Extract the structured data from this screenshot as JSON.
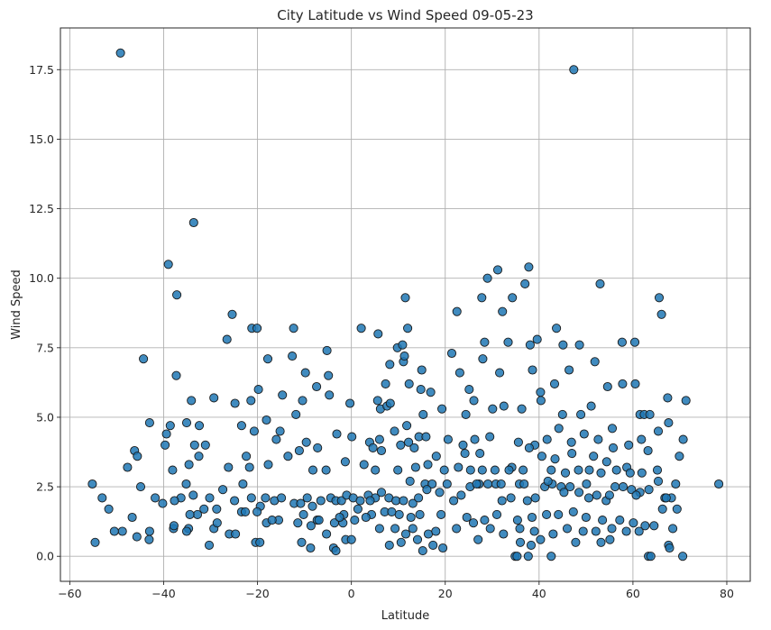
{
  "chart_data": {
    "type": "scatter",
    "title": "City Latitude vs Wind Speed 09-05-23",
    "xlabel": "Latitude",
    "ylabel": "Wind Speed",
    "xlim": [
      -62,
      85
    ],
    "ylim": [
      -0.9,
      19.0
    ],
    "xticks": [
      -60,
      -40,
      -20,
      0,
      20,
      40,
      60,
      80
    ],
    "yticks": [
      0.0,
      2.5,
      5.0,
      7.5,
      10.0,
      12.5,
      15.0,
      17.5
    ],
    "xtick_labels": [
      "−60",
      "−40",
      "−20",
      "0",
      "20",
      "40",
      "60",
      "80"
    ],
    "ytick_labels": [
      "0.0",
      "2.5",
      "5.0",
      "7.5",
      "10.0",
      "12.5",
      "15.0",
      "17.5"
    ],
    "grid": true,
    "legend": "none",
    "marker_color": "#1f77b4",
    "marker_edge_color": "#000000",
    "points": [
      [
        -49.2,
        18.1
      ],
      [
        47.4,
        17.5
      ],
      [
        -33.6,
        12.0
      ],
      [
        -39.0,
        10.5
      ],
      [
        -37.2,
        9.4
      ],
      [
        31.2,
        10.3
      ],
      [
        37.8,
        10.4
      ],
      [
        29.0,
        10.0
      ],
      [
        34.3,
        9.3
      ],
      [
        37.0,
        9.8
      ],
      [
        11.5,
        9.3
      ],
      [
        27.8,
        9.3
      ],
      [
        53.0,
        9.8
      ],
      [
        65.6,
        9.3
      ],
      [
        66.1,
        8.7
      ],
      [
        -25.4,
        8.7
      ],
      [
        -21.2,
        8.2
      ],
      [
        -20.1,
        8.2
      ],
      [
        -12.3,
        8.2
      ],
      [
        2.1,
        8.2
      ],
      [
        12.0,
        8.2
      ],
      [
        22.5,
        8.8
      ],
      [
        32.2,
        8.8
      ],
      [
        43.7,
        8.2
      ],
      [
        -26.5,
        7.8
      ],
      [
        -44.3,
        7.1
      ],
      [
        -17.8,
        7.1
      ],
      [
        -12.6,
        7.2
      ],
      [
        -5.2,
        7.4
      ],
      [
        5.7,
        8.0
      ],
      [
        9.8,
        7.5
      ],
      [
        10.9,
        7.6
      ],
      [
        11.1,
        7.0
      ],
      [
        21.4,
        7.3
      ],
      [
        28.4,
        7.7
      ],
      [
        33.4,
        7.7
      ],
      [
        38.1,
        7.6
      ],
      [
        39.6,
        7.8
      ],
      [
        45.1,
        7.6
      ],
      [
        48.6,
        7.6
      ],
      [
        57.7,
        7.7
      ],
      [
        60.4,
        7.7
      ],
      [
        8.2,
        6.9
      ],
      [
        11.3,
        7.2
      ],
      [
        15.0,
        6.7
      ],
      [
        23.1,
        6.6
      ],
      [
        28.0,
        7.1
      ],
      [
        31.6,
        6.6
      ],
      [
        38.6,
        6.7
      ],
      [
        46.4,
        6.7
      ],
      [
        51.9,
        7.0
      ],
      [
        -37.3,
        6.5
      ],
      [
        -9.8,
        6.6
      ],
      [
        -7.4,
        6.1
      ],
      [
        -4.9,
        6.5
      ],
      [
        7.3,
        6.2
      ],
      [
        12.3,
        6.2
      ],
      [
        14.8,
        6.0
      ],
      [
        16.9,
        5.9
      ],
      [
        25.1,
        6.0
      ],
      [
        40.3,
        5.9
      ],
      [
        43.3,
        6.2
      ],
      [
        54.6,
        6.1
      ],
      [
        57.8,
        6.2
      ],
      [
        60.5,
        6.2
      ],
      [
        -19.8,
        6.0
      ],
      [
        -34.1,
        5.6
      ],
      [
        -29.3,
        5.7
      ],
      [
        -24.8,
        5.5
      ],
      [
        -21.4,
        5.6
      ],
      [
        -14.7,
        5.8
      ],
      [
        -10.4,
        5.6
      ],
      [
        -4.7,
        5.8
      ],
      [
        -0.3,
        5.5
      ],
      [
        5.6,
        5.6
      ],
      [
        6.2,
        5.3
      ],
      [
        7.6,
        5.4
      ],
      [
        8.3,
        5.5
      ],
      [
        15.3,
        5.1
      ],
      [
        19.3,
        5.3
      ],
      [
        24.4,
        5.1
      ],
      [
        26.1,
        5.6
      ],
      [
        30.1,
        5.3
      ],
      [
        32.5,
        5.4
      ],
      [
        36.3,
        5.3
      ],
      [
        40.4,
        5.6
      ],
      [
        45.0,
        5.1
      ],
      [
        48.9,
        5.1
      ],
      [
        51.1,
        5.4
      ],
      [
        55.6,
        4.6
      ],
      [
        61.5,
        5.1
      ],
      [
        62.4,
        5.1
      ],
      [
        63.6,
        5.1
      ],
      [
        67.4,
        5.7
      ],
      [
        71.3,
        5.6
      ],
      [
        -43.0,
        4.8
      ],
      [
        -39.4,
        4.4
      ],
      [
        -38.6,
        4.7
      ],
      [
        -35.1,
        4.8
      ],
      [
        -32.4,
        4.7
      ],
      [
        -23.4,
        4.7
      ],
      [
        -20.7,
        4.5
      ],
      [
        -18.1,
        4.9
      ],
      [
        -15.2,
        4.5
      ],
      [
        -11.8,
        5.1
      ],
      [
        -9.6,
        4.1
      ],
      [
        -3.1,
        4.4
      ],
      [
        0.1,
        4.3
      ],
      [
        3.9,
        4.1
      ],
      [
        6.0,
        4.2
      ],
      [
        9.2,
        4.5
      ],
      [
        10.5,
        4.0
      ],
      [
        11.8,
        4.7
      ],
      [
        14.4,
        4.3
      ],
      [
        15.9,
        4.3
      ],
      [
        20.6,
        4.2
      ],
      [
        23.8,
        4.0
      ],
      [
        26.3,
        4.2
      ],
      [
        29.5,
        4.3
      ],
      [
        35.6,
        4.1
      ],
      [
        39.1,
        4.0
      ],
      [
        41.7,
        4.2
      ],
      [
        44.2,
        4.6
      ],
      [
        46.9,
        4.1
      ],
      [
        49.6,
        4.4
      ],
      [
        52.6,
        4.2
      ],
      [
        55.8,
        3.9
      ],
      [
        59.1,
        4.0
      ],
      [
        61.8,
        4.2
      ],
      [
        65.4,
        4.5
      ],
      [
        67.6,
        4.8
      ],
      [
        70.7,
        4.2
      ],
      [
        -39.7,
        4.0
      ],
      [
        -33.4,
        4.0
      ],
      [
        -31.1,
        4.0
      ],
      [
        -16.0,
        4.2
      ],
      [
        -11.1,
        3.8
      ],
      [
        -7.2,
        3.9
      ],
      [
        4.6,
        3.9
      ],
      [
        6.4,
        3.8
      ],
      [
        12.2,
        4.1
      ],
      [
        13.4,
        3.9
      ],
      [
        18.1,
        3.6
      ],
      [
        24.2,
        3.7
      ],
      [
        27.4,
        3.7
      ],
      [
        34.2,
        3.2
      ],
      [
        37.9,
        3.9
      ],
      [
        40.6,
        3.6
      ],
      [
        43.4,
        3.5
      ],
      [
        47.0,
        3.7
      ],
      [
        51.6,
        3.6
      ],
      [
        54.4,
        3.4
      ],
      [
        58.7,
        3.2
      ],
      [
        63.2,
        3.8
      ],
      [
        69.9,
        3.6
      ],
      [
        -47.7,
        3.2
      ],
      [
        -46.2,
        3.8
      ],
      [
        -45.6,
        3.6
      ],
      [
        -38.1,
        3.1
      ],
      [
        -34.6,
        3.3
      ],
      [
        -32.5,
        3.6
      ],
      [
        -26.2,
        3.2
      ],
      [
        -22.4,
        3.6
      ],
      [
        -21.7,
        3.2
      ],
      [
        -17.7,
        3.3
      ],
      [
        -13.5,
        3.6
      ],
      [
        -8.2,
        3.1
      ],
      [
        -5.4,
        3.1
      ],
      [
        -1.3,
        3.4
      ],
      [
        2.7,
        3.3
      ],
      [
        5.1,
        3.1
      ],
      [
        9.9,
        3.1
      ],
      [
        13.7,
        3.2
      ],
      [
        16.3,
        3.3
      ],
      [
        19.8,
        3.1
      ],
      [
        22.8,
        3.2
      ],
      [
        25.4,
        3.1
      ],
      [
        27.9,
        3.1
      ],
      [
        30.6,
        3.1
      ],
      [
        33.6,
        3.1
      ],
      [
        36.6,
        3.1
      ],
      [
        42.6,
        3.1
      ],
      [
        45.6,
        3.0
      ],
      [
        48.4,
        3.1
      ],
      [
        50.7,
        3.1
      ],
      [
        53.2,
        3.0
      ],
      [
        56.5,
        3.1
      ],
      [
        59.4,
        3.0
      ],
      [
        61.9,
        3.0
      ],
      [
        65.2,
        3.1
      ],
      [
        -55.2,
        2.6
      ],
      [
        -53.1,
        2.1
      ],
      [
        -51.7,
        1.7
      ],
      [
        -44.9,
        2.5
      ],
      [
        -41.8,
        2.1
      ],
      [
        -36.3,
        2.1
      ],
      [
        -35.2,
        2.6
      ],
      [
        -33.7,
        2.2
      ],
      [
        -30.2,
        2.1
      ],
      [
        -28.7,
        1.7
      ],
      [
        -27.4,
        2.4
      ],
      [
        -24.9,
        2.0
      ],
      [
        -23.1,
        2.6
      ],
      [
        -21.3,
        2.1
      ],
      [
        -19.4,
        1.8
      ],
      [
        -18.3,
        2.1
      ],
      [
        -16.4,
        2.0
      ],
      [
        -14.9,
        2.1
      ],
      [
        -12.2,
        1.9
      ],
      [
        -10.8,
        1.9
      ],
      [
        -9.4,
        2.1
      ],
      [
        -8.3,
        1.8
      ],
      [
        -6.5,
        2.0
      ],
      [
        -4.4,
        2.1
      ],
      [
        -3.3,
        2.0
      ],
      [
        -2.1,
        2.0
      ],
      [
        -1.0,
        2.2
      ],
      [
        0.4,
        2.1
      ],
      [
        1.9,
        2.0
      ],
      [
        3.6,
        2.2
      ],
      [
        5.1,
        2.1
      ],
      [
        6.4,
        2.3
      ],
      [
        8.0,
        2.1
      ],
      [
        9.5,
        2.0
      ],
      [
        11.1,
        2.0
      ],
      [
        13.1,
        1.9
      ],
      [
        14.3,
        2.1
      ],
      [
        15.7,
        2.6
      ],
      [
        17.2,
        2.6
      ],
      [
        18.8,
        2.3
      ],
      [
        21.8,
        2.0
      ],
      [
        23.4,
        2.2
      ],
      [
        25.3,
        2.5
      ],
      [
        27.2,
        2.6
      ],
      [
        29.1,
        2.6
      ],
      [
        30.8,
        2.6
      ],
      [
        32.1,
        2.0
      ],
      [
        34.0,
        2.1
      ],
      [
        35.8,
        2.6
      ],
      [
        37.5,
        2.0
      ],
      [
        39.2,
        2.1
      ],
      [
        41.2,
        2.5
      ],
      [
        42.8,
        2.6
      ],
      [
        44.7,
        2.5
      ],
      [
        46.6,
        2.5
      ],
      [
        48.5,
        2.3
      ],
      [
        50.6,
        2.1
      ],
      [
        52.3,
        2.2
      ],
      [
        54.3,
        2.0
      ],
      [
        56.2,
        2.5
      ],
      [
        57.9,
        2.5
      ],
      [
        59.7,
        2.4
      ],
      [
        61.5,
        2.3
      ],
      [
        63.4,
        2.4
      ],
      [
        65.4,
        2.7
      ],
      [
        66.8,
        2.1
      ],
      [
        68.2,
        2.1
      ],
      [
        69.1,
        2.6
      ],
      [
        -37.7,
        2.0
      ],
      [
        -40.2,
        1.9
      ],
      [
        -31.4,
        1.7
      ],
      [
        -23.4,
        1.6
      ],
      [
        -20.1,
        1.6
      ],
      [
        -15.5,
        1.3
      ],
      [
        -10.2,
        1.5
      ],
      [
        -7.3,
        1.3
      ],
      [
        -1.6,
        1.5
      ],
      [
        1.4,
        1.7
      ],
      [
        4.3,
        1.5
      ],
      [
        7.1,
        1.6
      ],
      [
        10.2,
        1.5
      ],
      [
        12.7,
        1.4
      ],
      [
        14.6,
        1.5
      ],
      [
        19.1,
        1.5
      ],
      [
        24.6,
        1.4
      ],
      [
        28.4,
        1.3
      ],
      [
        31.0,
        1.5
      ],
      [
        35.4,
        1.3
      ],
      [
        38.5,
        1.4
      ],
      [
        41.6,
        1.5
      ],
      [
        44.1,
        1.5
      ],
      [
        47.3,
        1.6
      ],
      [
        50.0,
        1.4
      ],
      [
        53.5,
        1.3
      ],
      [
        57.2,
        1.3
      ],
      [
        60.1,
        1.2
      ],
      [
        62.6,
        1.1
      ],
      [
        66.3,
        1.7
      ],
      [
        69.4,
        1.7
      ],
      [
        -48.8,
        0.9
      ],
      [
        -46.7,
        1.4
      ],
      [
        -43.0,
        0.9
      ],
      [
        -37.9,
        1.0
      ],
      [
        -34.7,
        1.0
      ],
      [
        -29.3,
        1.0
      ],
      [
        -28.6,
        1.2
      ],
      [
        -18.1,
        1.2
      ],
      [
        -16.9,
        1.3
      ],
      [
        -11.4,
        1.2
      ],
      [
        -8.6,
        1.1
      ],
      [
        -5.3,
        0.8
      ],
      [
        -3.6,
        1.2
      ],
      [
        -1.8,
        1.2
      ],
      [
        0.7,
        1.3
      ],
      [
        3.1,
        1.4
      ],
      [
        6.0,
        1.0
      ],
      [
        9.3,
        1.0
      ],
      [
        11.6,
        0.8
      ],
      [
        13.1,
        1.0
      ],
      [
        16.4,
        0.8
      ],
      [
        18.0,
        0.9
      ],
      [
        22.4,
        1.0
      ],
      [
        26.0,
        1.2
      ],
      [
        29.6,
        1.0
      ],
      [
        32.4,
        0.8
      ],
      [
        35.9,
        1.0
      ],
      [
        39.0,
        0.9
      ],
      [
        43.0,
        0.8
      ],
      [
        46.0,
        1.0
      ],
      [
        49.4,
        0.9
      ],
      [
        52.1,
        0.9
      ],
      [
        55.5,
        1.0
      ],
      [
        58.6,
        0.9
      ],
      [
        61.3,
        0.9
      ],
      [
        64.5,
        1.1
      ],
      [
        68.5,
        1.0
      ],
      [
        -54.6,
        0.5
      ],
      [
        -50.5,
        0.9
      ],
      [
        -45.7,
        0.7
      ],
      [
        -43.1,
        0.6
      ],
      [
        -35.1,
        0.9
      ],
      [
        -30.3,
        0.4
      ],
      [
        -26.0,
        0.8
      ],
      [
        -24.7,
        0.8
      ],
      [
        -20.4,
        0.5
      ],
      [
        -19.5,
        0.5
      ],
      [
        -10.6,
        0.5
      ],
      [
        -8.7,
        0.3
      ],
      [
        -3.8,
        0.3
      ],
      [
        -3.3,
        0.2
      ],
      [
        -1.2,
        0.6
      ],
      [
        0.0,
        0.6
      ],
      [
        8.1,
        0.4
      ],
      [
        10.6,
        0.5
      ],
      [
        14.1,
        0.6
      ],
      [
        15.2,
        0.2
      ],
      [
        17.4,
        0.4
      ],
      [
        19.5,
        0.3
      ],
      [
        27.0,
        0.6
      ],
      [
        34.9,
        0.0
      ],
      [
        35.3,
        0.0
      ],
      [
        36.0,
        0.5
      ],
      [
        37.7,
        0.0
      ],
      [
        38.3,
        0.4
      ],
      [
        40.3,
        0.6
      ],
      [
        42.6,
        0.0
      ],
      [
        47.8,
        0.5
      ],
      [
        53.2,
        0.5
      ],
      [
        55.1,
        0.6
      ],
      [
        63.3,
        0.0
      ],
      [
        63.8,
        0.0
      ],
      [
        67.6,
        0.4
      ],
      [
        67.8,
        0.3
      ],
      [
        70.6,
        0.0
      ],
      [
        78.3,
        2.6
      ],
      [
        -37.8,
        1.1
      ],
      [
        -32.8,
        1.5
      ],
      [
        -34.4,
        1.5
      ],
      [
        -22.6,
        1.6
      ],
      [
        -6.9,
        1.3
      ],
      [
        -2.5,
        1.4
      ],
      [
        4.0,
        2.0
      ],
      [
        8.6,
        1.6
      ],
      [
        12.5,
        2.7
      ],
      [
        16.1,
        2.4
      ],
      [
        20.4,
        2.6
      ],
      [
        26.7,
        2.6
      ],
      [
        31.9,
        2.6
      ],
      [
        36.8,
        2.6
      ],
      [
        41.9,
        2.7
      ],
      [
        45.3,
        2.3
      ],
      [
        50.1,
        2.6
      ],
      [
        55.0,
        2.2
      ],
      [
        60.7,
        2.2
      ],
      [
        67.1,
        2.1
      ]
    ]
  }
}
